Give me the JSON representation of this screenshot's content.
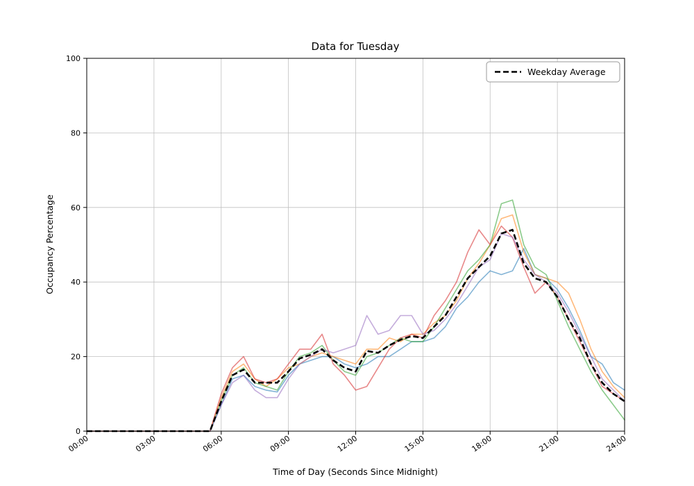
{
  "chart_data": {
    "type": "line",
    "title": "Data for Tuesday",
    "xlabel": "Time of Day (Seconds Since Midnight)",
    "ylabel": "Occupancy Percentage",
    "xlim": [
      0,
      24
    ],
    "ylim": [
      0,
      100
    ],
    "grid": true,
    "legend_position": "upper right",
    "x_tick_hours": [
      0,
      3,
      6,
      9,
      12,
      15,
      18,
      21,
      24
    ],
    "x_tick_labels": [
      "00:00",
      "03:00",
      "06:00",
      "09:00",
      "12:00",
      "15:00",
      "18:00",
      "21:00",
      "24:00"
    ],
    "y_ticks": [
      0,
      20,
      40,
      60,
      80,
      100
    ],
    "x_start": 0,
    "x_step": 0.5,
    "series": [
      {
        "name": "series_1",
        "color": "#1f77b4",
        "opacity": 0.55,
        "values": [
          0,
          0,
          0,
          0,
          0,
          0,
          0,
          0,
          0,
          0,
          0,
          0,
          7,
          14,
          15,
          12,
          11,
          10.5,
          15,
          18,
          19,
          20,
          20,
          18,
          17,
          18,
          20,
          20,
          22,
          24,
          24,
          25,
          28,
          33,
          36,
          40,
          43,
          42,
          43,
          49,
          42,
          41,
          38,
          33,
          27,
          20,
          18,
          13,
          11
        ]
      },
      {
        "name": "series_2",
        "color": "#ff7f0e",
        "opacity": 0.55,
        "values": [
          0,
          0,
          0,
          0,
          0,
          0,
          0,
          0,
          0,
          0,
          0,
          0,
          9,
          16,
          18,
          14,
          12,
          14,
          17,
          18,
          20,
          21,
          20,
          19,
          18,
          22,
          22,
          25,
          24,
          26,
          26,
          29,
          31,
          35,
          41,
          45,
          50,
          57,
          58,
          48,
          42,
          41,
          40,
          37,
          30,
          22,
          16,
          12,
          9
        ]
      },
      {
        "name": "series_3",
        "color": "#2ca02c",
        "opacity": 0.55,
        "values": [
          0,
          0,
          0,
          0,
          0,
          0,
          0,
          0,
          0,
          0,
          0,
          0,
          8,
          15,
          17,
          13,
          12,
          11,
          16,
          20,
          21,
          23,
          19,
          16,
          15,
          20,
          21,
          23,
          25,
          24,
          24,
          28,
          33,
          38,
          43,
          46,
          50,
          61,
          62,
          50,
          44,
          42,
          35,
          28,
          22,
          16,
          11,
          7,
          3
        ]
      },
      {
        "name": "series_4",
        "color": "#d62728",
        "opacity": 0.55,
        "values": [
          0,
          0,
          0,
          0,
          0,
          0,
          0,
          0,
          0,
          0,
          0,
          0,
          10,
          17,
          20,
          14,
          13,
          14,
          18,
          22,
          22,
          26,
          18,
          15,
          11,
          12,
          17,
          22,
          25,
          26,
          25,
          31,
          35,
          40,
          48,
          54,
          50,
          55,
          52,
          44,
          37,
          40,
          36,
          30,
          24,
          18,
          12,
          10,
          8
        ]
      },
      {
        "name": "series_5",
        "color": "#9467bd",
        "opacity": 0.55,
        "values": [
          0,
          0,
          0,
          0,
          0,
          0,
          0,
          0,
          0,
          0,
          0,
          0,
          7,
          13,
          15,
          11,
          9,
          9,
          14,
          18,
          20,
          22,
          21,
          22,
          23,
          31,
          26,
          27,
          31,
          31,
          26,
          27,
          30,
          34,
          39,
          44,
          46,
          53,
          52,
          46,
          42,
          40,
          37,
          32,
          26,
          20,
          14,
          11,
          8
        ]
      }
    ],
    "average": {
      "label": "Weekday Average",
      "color": "#000000",
      "dashed": true,
      "values": [
        0,
        0,
        0,
        0,
        0,
        0,
        0,
        0,
        0,
        0,
        0,
        0,
        8,
        15,
        16.5,
        13,
        13,
        13,
        16,
        19.5,
        20.5,
        22,
        19,
        17,
        16,
        21.5,
        21,
        23,
        24.5,
        25.5,
        25,
        28,
        31,
        36,
        41,
        44,
        47,
        53,
        54,
        45,
        41,
        40,
        36,
        30,
        25,
        18,
        13,
        10,
        8
      ]
    }
  }
}
